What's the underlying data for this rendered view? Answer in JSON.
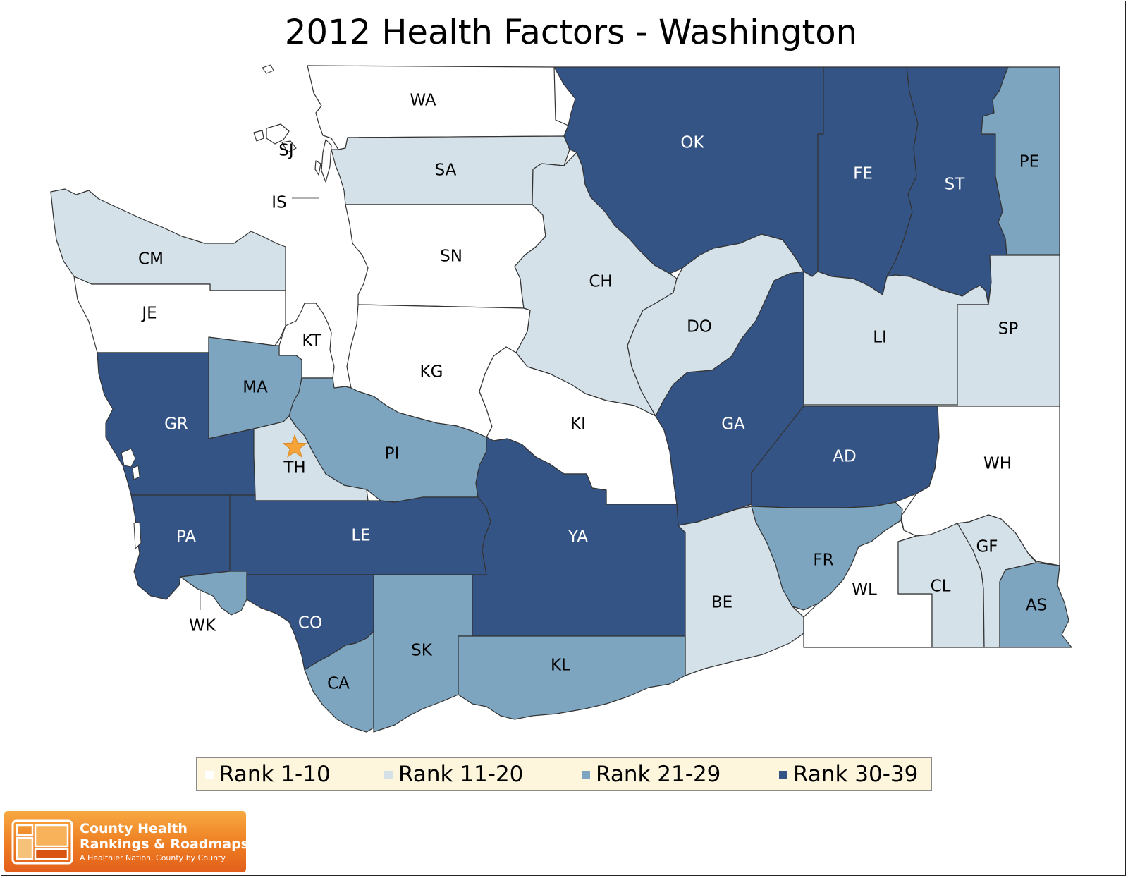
{
  "title": "2012 Health Factors - Washington",
  "map": {
    "region": "Washington",
    "highlighted_county": "TH",
    "marker_icon": "star-icon",
    "marker_color": "#f6a33a",
    "border_color": "#333333"
  },
  "legend": {
    "items": [
      {
        "label": "Rank 1-10",
        "color": "#ffffff"
      },
      {
        "label": "Rank 11-20",
        "color": "#d4e1e9"
      },
      {
        "label": "Rank 21-29",
        "color": "#7da5c0"
      },
      {
        "label": "Rank 30-39",
        "color": "#355486"
      }
    ]
  },
  "counties": [
    {
      "code": "WA",
      "category": 0
    },
    {
      "code": "SJ",
      "category": 0
    },
    {
      "code": "IS",
      "category": 0
    },
    {
      "code": "SA",
      "category": 1
    },
    {
      "code": "OK",
      "category": 3
    },
    {
      "code": "FE",
      "category": 3
    },
    {
      "code": "ST",
      "category": 3
    },
    {
      "code": "PE",
      "category": 2
    },
    {
      "code": "CM",
      "category": 1
    },
    {
      "code": "JE",
      "category": 0
    },
    {
      "code": "SN",
      "category": 0
    },
    {
      "code": "CH",
      "category": 1
    },
    {
      "code": "DO",
      "category": 1
    },
    {
      "code": "LI",
      "category": 1
    },
    {
      "code": "SP",
      "category": 1
    },
    {
      "code": "KT",
      "category": 0
    },
    {
      "code": "KG",
      "category": 0
    },
    {
      "code": "MA",
      "category": 2
    },
    {
      "code": "GR",
      "category": 3
    },
    {
      "code": "TH",
      "category": 1
    },
    {
      "code": "PI",
      "category": 2
    },
    {
      "code": "KI",
      "category": 0
    },
    {
      "code": "GA",
      "category": 3
    },
    {
      "code": "AD",
      "category": 3
    },
    {
      "code": "WH",
      "category": 0
    },
    {
      "code": "PA",
      "category": 3
    },
    {
      "code": "LE",
      "category": 3
    },
    {
      "code": "YA",
      "category": 3
    },
    {
      "code": "BE",
      "category": 1
    },
    {
      "code": "FR",
      "category": 2
    },
    {
      "code": "WL",
      "category": 0
    },
    {
      "code": "CL",
      "category": 1
    },
    {
      "code": "GF",
      "category": 1
    },
    {
      "code": "AS",
      "category": 2
    },
    {
      "code": "WK",
      "category": 2
    },
    {
      "code": "CO",
      "category": 3
    },
    {
      "code": "CA",
      "category": 2
    },
    {
      "code": "SK",
      "category": 2
    },
    {
      "code": "KL",
      "category": 2
    }
  ],
  "branding": {
    "line1": "County Health",
    "line2": "Rankings & Roadmaps",
    "tagline": "A Healthier Nation, County by County"
  }
}
